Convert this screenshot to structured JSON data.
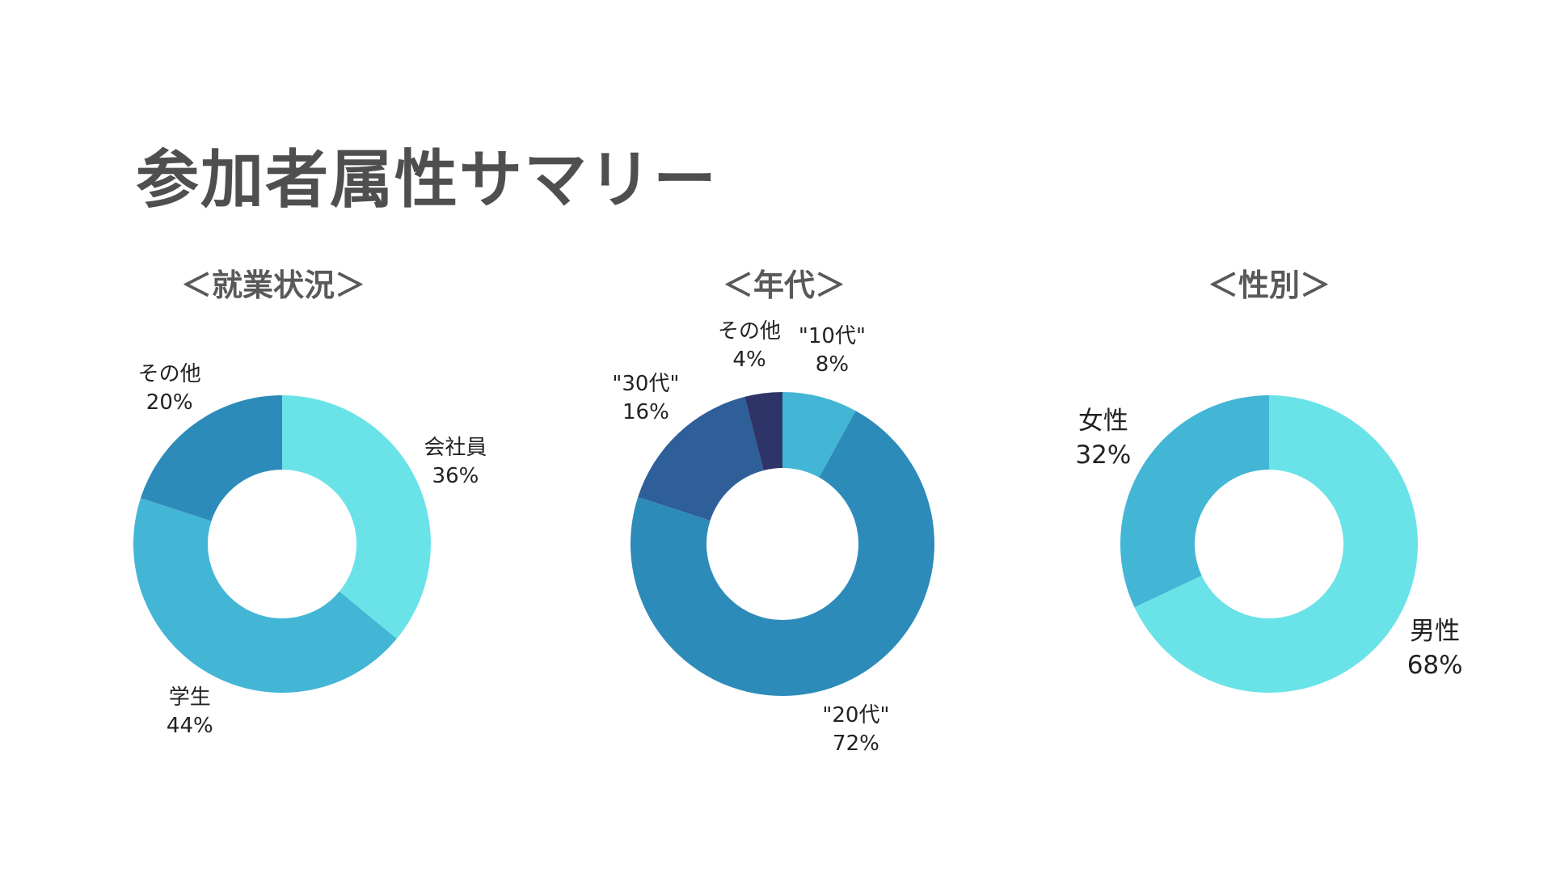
{
  "title": "参加者属性サマリー",
  "chart_data": [
    {
      "type": "pie",
      "style": "donut",
      "title": "＜就業状況＞",
      "categories": [
        "会社員",
        "学生",
        "その他"
      ],
      "values": [
        36,
        44,
        20
      ],
      "value_labels": [
        "36%",
        "44%",
        "20%"
      ],
      "colors": [
        "#6ae3e8",
        "#43b6d6",
        "#2d8bba"
      ]
    },
    {
      "type": "pie",
      "style": "donut",
      "title": "＜年代＞",
      "categories": [
        "\"10代\"",
        "\"20代\"",
        "\"30代\"",
        "その他"
      ],
      "values": [
        8,
        72,
        16,
        4
      ],
      "value_labels": [
        "8%",
        "72%",
        "16%",
        "4%"
      ],
      "colors": [
        "#43b6d6",
        "#2d8bba",
        "#2f5f98",
        "#2f3468"
      ]
    },
    {
      "type": "pie",
      "style": "donut",
      "title": "＜性別＞",
      "categories": [
        "男性",
        "女性"
      ],
      "values": [
        68,
        32
      ],
      "value_labels": [
        "68%",
        "32%"
      ],
      "colors": [
        "#6ae3e8",
        "#43b6d6"
      ]
    }
  ]
}
